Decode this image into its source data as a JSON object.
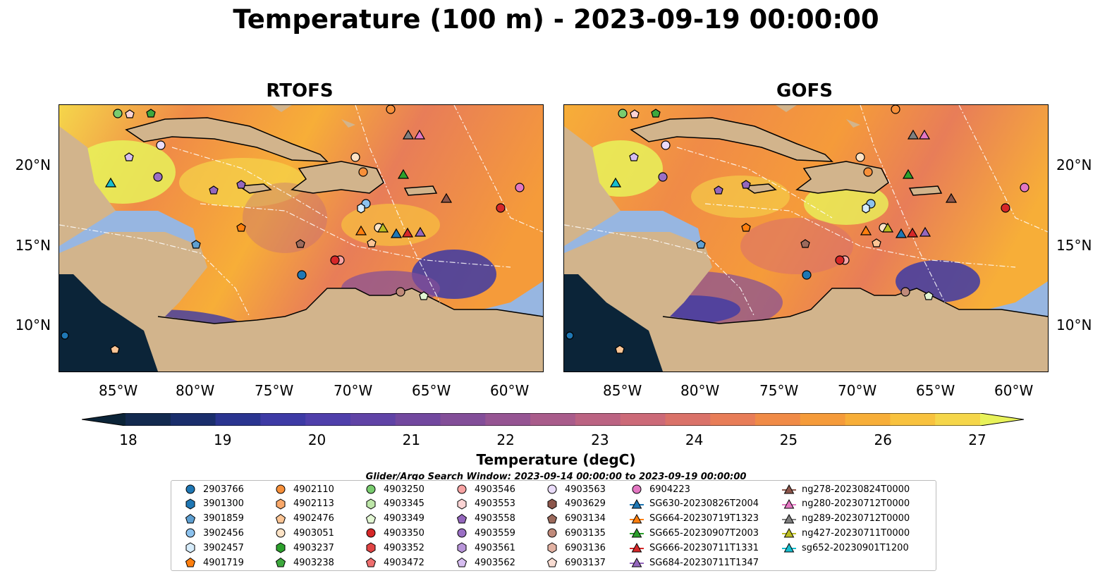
{
  "title": "Temperature (100 m) - 2023-09-19 00:00:00",
  "panels": [
    {
      "title": "RTOFS"
    },
    {
      "title": "GOFS"
    }
  ],
  "lat_labels": [
    "20°N",
    "15°N",
    "10°N"
  ],
  "lon_labels": [
    "85°W",
    "80°W",
    "75°W",
    "70°W",
    "65°W",
    "60°W"
  ],
  "colorbar": {
    "label": "Temperature (degC)",
    "ticks": [
      "18",
      "19",
      "20",
      "21",
      "22",
      "23",
      "24",
      "25",
      "26",
      "27"
    ],
    "min": 18,
    "max": 27,
    "colors": [
      "#0b2438",
      "#132a4f",
      "#1a2e6c",
      "#2a3490",
      "#3d3aa5",
      "#4f3fab",
      "#6043a6",
      "#72489f",
      "#834e99",
      "#965593",
      "#a95c8b",
      "#bb6382",
      "#cc6a78",
      "#da7269",
      "#e87d58",
      "#f08b47",
      "#f59b3a",
      "#f7ae38",
      "#f8c23e",
      "#f5d64a",
      "#e8f25a"
    ],
    "extend": "both"
  },
  "search_window": "Glider/Argo Search Window: 2023-09-14 00:00:00 to 2023-09-19 00:00:00",
  "colors": {
    "land": "#d2b48c",
    "shelf": "#97b6e1",
    "deep": "#0b2438"
  },
  "legend": [
    {
      "label": "2903766",
      "marker": "circle",
      "color": "#1f77b4"
    },
    {
      "label": "3901300",
      "marker": "hexagon",
      "color": "#1f77b4"
    },
    {
      "label": "3901859",
      "marker": "pentagon",
      "color": "#5e9fd1"
    },
    {
      "label": "3902456",
      "marker": "circle",
      "color": "#8cc2ee"
    },
    {
      "label": "3902457",
      "marker": "hexagon",
      "color": "#d6ecfb"
    },
    {
      "label": "4901719",
      "marker": "pentagon",
      "color": "#ff7f0e"
    },
    {
      "label": "4902110",
      "marker": "circle",
      "color": "#f7903a"
    },
    {
      "label": "4902113",
      "marker": "hexagon",
      "color": "#f9a86a"
    },
    {
      "label": "4902476",
      "marker": "pentagon",
      "color": "#fcc595"
    },
    {
      "label": "4903051",
      "marker": "circle",
      "color": "#fde3c6"
    },
    {
      "label": "4903237",
      "marker": "hexagon",
      "color": "#2ca02c"
    },
    {
      "label": "4903238",
      "marker": "pentagon",
      "color": "#3da83d"
    },
    {
      "label": "4903250",
      "marker": "circle",
      "color": "#79cc6f"
    },
    {
      "label": "4903345",
      "marker": "hexagon",
      "color": "#bde6a8"
    },
    {
      "label": "4903349",
      "marker": "pentagon",
      "color": "#e2f6d3"
    },
    {
      "label": "4903350",
      "marker": "circle",
      "color": "#d62728"
    },
    {
      "label": "4903352",
      "marker": "hexagon",
      "color": "#e04444"
    },
    {
      "label": "4903472",
      "marker": "pentagon",
      "color": "#ee6e6e"
    },
    {
      "label": "4903546",
      "marker": "circle",
      "color": "#f7a3a3"
    },
    {
      "label": "4903553",
      "marker": "hexagon",
      "color": "#fcd4d4"
    },
    {
      "label": "4903558",
      "marker": "pentagon",
      "color": "#9467bd"
    },
    {
      "label": "4903559",
      "marker": "circle",
      "color": "#9a6fc4"
    },
    {
      "label": "4903561",
      "marker": "hexagon",
      "color": "#b895d9"
    },
    {
      "label": "4903562",
      "marker": "pentagon",
      "color": "#d6bdf0"
    },
    {
      "label": "4903563",
      "marker": "circle",
      "color": "#eadcfa"
    },
    {
      "label": "4903629",
      "marker": "hexagon",
      "color": "#8c564b"
    },
    {
      "label": "6903134",
      "marker": "pentagon",
      "color": "#9c6a5c"
    },
    {
      "label": "6903135",
      "marker": "circle",
      "color": "#c08a7a"
    },
    {
      "label": "6903136",
      "marker": "hexagon",
      "color": "#e2b2a3"
    },
    {
      "label": "6903137",
      "marker": "pentagon",
      "color": "#f8dcd2"
    },
    {
      "label": "6904223",
      "marker": "circle",
      "color": "#e377c2"
    },
    {
      "label": "SG630-20230826T2004",
      "marker": "triangle",
      "color": "#1f77b4"
    },
    {
      "label": "SG664-20230719T1323",
      "marker": "triangle",
      "color": "#ff7f0e"
    },
    {
      "label": "SG665-20230907T2003",
      "marker": "triangle",
      "color": "#2ca02c"
    },
    {
      "label": "SG666-20230711T1331",
      "marker": "triangle",
      "color": "#d62728"
    },
    {
      "label": "SG684-20230711T1347",
      "marker": "triangle",
      "color": "#9467bd"
    },
    {
      "label": "ng278-20230824T0000",
      "marker": "triangle",
      "color": "#8c564b"
    },
    {
      "label": "ng280-20230712T0000",
      "marker": "triangle",
      "color": "#e377c2"
    },
    {
      "label": "ng289-20230712T0000",
      "marker": "triangle",
      "color": "#7f7f7f"
    },
    {
      "label": "ng427-20230711T0000",
      "marker": "triangle",
      "color": "#bcbd22"
    },
    {
      "label": "sg652-20230901T1200",
      "marker": "triangle",
      "color": "#17becf"
    }
  ]
}
